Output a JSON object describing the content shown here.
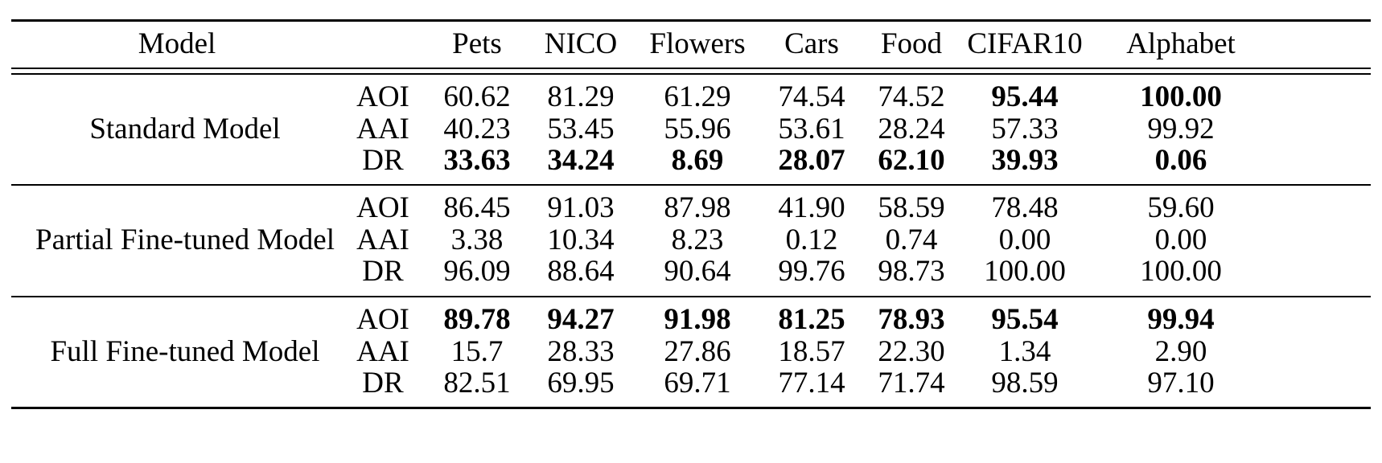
{
  "table": {
    "header": {
      "model": "Model",
      "columns": [
        "Pets",
        "NICO",
        "Flowers",
        "Cars",
        "Food",
        "CIFAR10",
        "Alphabet"
      ]
    },
    "groups": [
      {
        "name": "Standard Model",
        "rows": [
          {
            "metric": "AOI",
            "values": [
              "60.62",
              "81.29",
              "61.29",
              "74.54",
              "74.52",
              "95.44",
              "100.00"
            ],
            "bold": [
              false,
              false,
              false,
              false,
              false,
              true,
              true
            ]
          },
          {
            "metric": "AAI",
            "values": [
              "40.23",
              "53.45",
              "55.96",
              "53.61",
              "28.24",
              "57.33",
              "99.92"
            ],
            "bold": [
              false,
              false,
              false,
              false,
              false,
              false,
              false
            ]
          },
          {
            "metric": "DR",
            "values": [
              "33.63",
              "34.24",
              "8.69",
              "28.07",
              "62.10",
              "39.93",
              "0.06"
            ],
            "bold": [
              true,
              true,
              true,
              true,
              true,
              true,
              true
            ]
          }
        ]
      },
      {
        "name": "Partial Fine-tuned Model",
        "rows": [
          {
            "metric": "AOI",
            "values": [
              "86.45",
              "91.03",
              "87.98",
              "41.90",
              "58.59",
              "78.48",
              "59.60"
            ],
            "bold": [
              false,
              false,
              false,
              false,
              false,
              false,
              false
            ]
          },
          {
            "metric": "AAI",
            "values": [
              "3.38",
              "10.34",
              "8.23",
              "0.12",
              "0.74",
              "0.00",
              "0.00"
            ],
            "bold": [
              false,
              false,
              false,
              false,
              false,
              false,
              false
            ]
          },
          {
            "metric": "DR",
            "values": [
              "96.09",
              "88.64",
              "90.64",
              "99.76",
              "98.73",
              "100.00",
              "100.00"
            ],
            "bold": [
              false,
              false,
              false,
              false,
              false,
              false,
              false
            ]
          }
        ]
      },
      {
        "name": "Full Fine-tuned Model",
        "rows": [
          {
            "metric": "AOI",
            "values": [
              "89.78",
              "94.27",
              "91.98",
              "81.25",
              "78.93",
              "95.54",
              "99.94"
            ],
            "bold": [
              true,
              true,
              true,
              true,
              true,
              true,
              true
            ]
          },
          {
            "metric": "AAI",
            "values": [
              "15.7",
              "28.33",
              "27.86",
              "18.57",
              "22.30",
              "1.34",
              "2.90"
            ],
            "bold": [
              false,
              false,
              false,
              false,
              false,
              false,
              false
            ]
          },
          {
            "metric": "DR",
            "values": [
              "82.51",
              "69.95",
              "69.71",
              "77.14",
              "71.74",
              "98.59",
              "97.10"
            ],
            "bold": [
              false,
              false,
              false,
              false,
              false,
              false,
              false
            ]
          }
        ]
      }
    ]
  }
}
